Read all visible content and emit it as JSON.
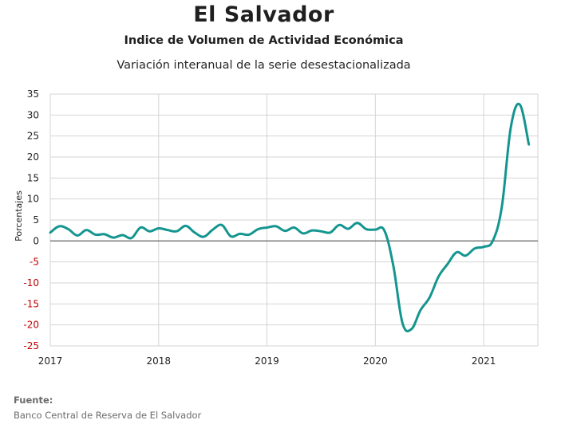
{
  "title": "El Salvador",
  "subtitle": "Indice de Volumen de  Actividad Económica",
  "subtitle2": "Variación interanual de la serie desestacionalizada",
  "source": {
    "label": "Fuente:",
    "text": "Banco Central de Reserva de El Salvador"
  },
  "colors": {
    "line": "#14958f",
    "negative_tick": "#c00000",
    "positive_tick": "#222222",
    "grid": "#d4d4d4",
    "zero_line": "#6e6e6e"
  },
  "chart_data": {
    "type": "line",
    "title": "El Salvador",
    "ylabel": "Porcentajes",
    "xlabel": "",
    "ylim": [
      -25,
      35
    ],
    "yticks": [
      35,
      30,
      25,
      20,
      15,
      10,
      5,
      0,
      -5,
      -10,
      -15,
      -20,
      -25
    ],
    "xlim": [
      2017.0,
      2021.5
    ],
    "xticks": [
      2017,
      2018,
      2019,
      2020,
      2021
    ],
    "xtick_labels": [
      "2017",
      "2018",
      "2019",
      "2020",
      "2021"
    ],
    "grid": true,
    "series": [
      {
        "x": [
          2017.0,
          2017.0833,
          2017.1667,
          2017.25,
          2017.3333,
          2017.4167,
          2017.5,
          2017.5833,
          2017.6667,
          2017.75,
          2017.8333,
          2017.9167,
          2018.0,
          2018.0833,
          2018.1667,
          2018.25,
          2018.3333,
          2018.4167,
          2018.5,
          2018.5833,
          2018.6667,
          2018.75,
          2018.8333,
          2018.9167,
          2019.0,
          2019.0833,
          2019.1667,
          2019.25,
          2019.3333,
          2019.4167,
          2019.5,
          2019.5833,
          2019.6667,
          2019.75,
          2019.8333,
          2019.9167,
          2020.0,
          2020.0833,
          2020.1667,
          2020.25,
          2020.3333,
          2020.4167,
          2020.5,
          2020.5833,
          2020.6667,
          2020.75,
          2020.8333,
          2020.9167,
          2021.0,
          2021.0833,
          2021.1667,
          2021.25,
          2021.3333,
          2021.4167
        ],
        "values": [
          2.0,
          3.5,
          2.8,
          1.3,
          2.6,
          1.5,
          1.6,
          0.8,
          1.4,
          0.7,
          3.2,
          2.3,
          3.0,
          2.6,
          2.3,
          3.6,
          2.0,
          1.0,
          2.7,
          3.8,
          1.1,
          1.7,
          1.5,
          2.8,
          3.2,
          3.5,
          2.4,
          3.2,
          1.8,
          2.5,
          2.3,
          2.0,
          3.8,
          2.9,
          4.3,
          2.8,
          2.7,
          2.5,
          -6.0,
          -19.5,
          -21.0,
          -16.5,
          -13.5,
          -8.5,
          -5.5,
          -2.7,
          -3.5,
          -1.8,
          -1.4,
          0.0,
          8.0,
          27.0,
          32.5,
          23.0
        ]
      }
    ]
  }
}
